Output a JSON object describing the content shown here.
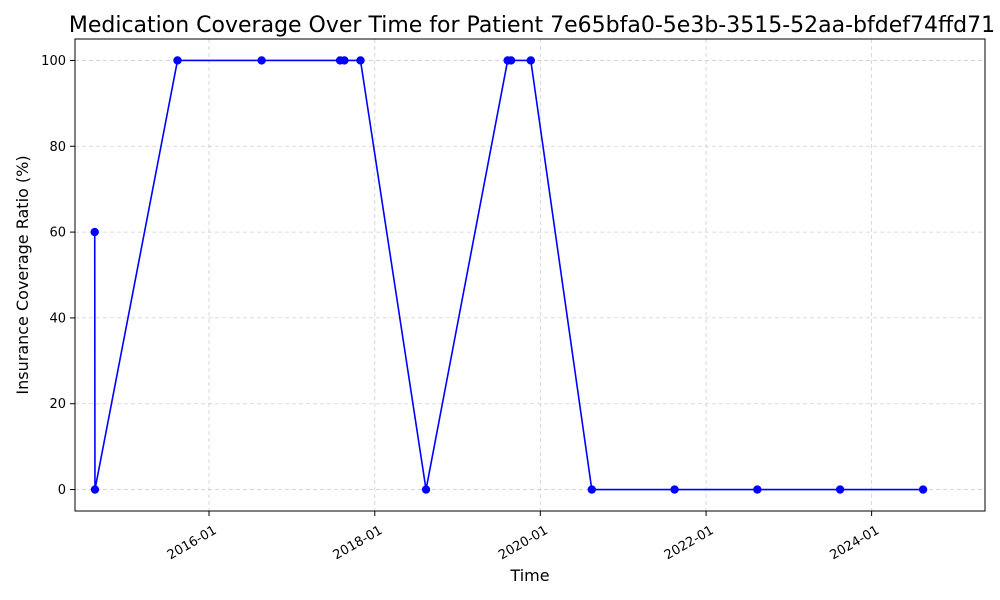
{
  "chart_data": {
    "type": "line",
    "title": "Medication Coverage Over Time for Patient 7e65bfa0-5e3b-3515-52aa-bfdef74ffd71",
    "xlabel": "Time",
    "ylabel": "Insurance Coverage Ratio (%)",
    "x_axis_type": "date",
    "xlim": [
      "2014-05-20",
      "2025-05-15"
    ],
    "ylim": [
      -5,
      105
    ],
    "x_ticks": [
      "2016-01-01",
      "2018-01-01",
      "2020-01-01",
      "2022-01-01",
      "2024-01-01"
    ],
    "x_tick_labels": [
      "2016-01",
      "2018-01",
      "2020-01",
      "2022-01",
      "2024-01"
    ],
    "y_ticks": [
      0,
      20,
      40,
      60,
      80,
      100
    ],
    "grid": true,
    "series": [
      {
        "color": "#0000ff",
        "marker": "circle",
        "points": [
          {
            "x": "2014-08-15",
            "y": 60
          },
          {
            "x": "2014-08-16",
            "y": 0
          },
          {
            "x": "2015-08-15",
            "y": 100
          },
          {
            "x": "2016-08-20",
            "y": 100
          },
          {
            "x": "2017-08-01",
            "y": 100
          },
          {
            "x": "2017-08-20",
            "y": 100
          },
          {
            "x": "2017-10-30",
            "y": 100
          },
          {
            "x": "2018-08-15",
            "y": 0
          },
          {
            "x": "2019-08-10",
            "y": 100
          },
          {
            "x": "2019-08-25",
            "y": 100
          },
          {
            "x": "2019-11-20",
            "y": 100
          },
          {
            "x": "2020-08-15",
            "y": 0
          },
          {
            "x": "2021-08-15",
            "y": 0
          },
          {
            "x": "2022-08-15",
            "y": 0
          },
          {
            "x": "2023-08-15",
            "y": 0
          },
          {
            "x": "2024-08-15",
            "y": 0
          }
        ]
      }
    ]
  }
}
